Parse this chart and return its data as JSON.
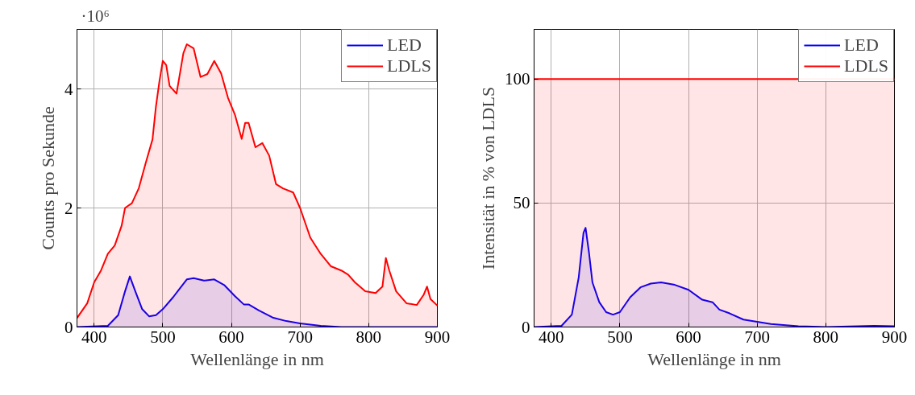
{
  "chart_data": [
    {
      "type": "area",
      "xlabel": "Wellenlänge in nm",
      "ylabel": "Counts pro Sekunde",
      "annotations": [
        "·10⁶"
      ],
      "xlim": [
        375,
        900
      ],
      "ylim": [
        0,
        5
      ],
      "xticks": [
        400,
        500,
        600,
        700,
        800,
        900
      ],
      "yticks": [
        0,
        2,
        4
      ],
      "grid": true,
      "legend": "top right",
      "series": [
        {
          "name": "LED",
          "color": "#0000ff",
          "x": [
            375,
            420,
            435,
            445,
            452,
            460,
            470,
            480,
            490,
            500,
            515,
            525,
            535,
            545,
            560,
            575,
            590,
            605,
            618,
            625,
            640,
            660,
            680,
            700,
            730,
            760,
            900
          ],
          "values": [
            0,
            0.02,
            0.2,
            0.6,
            0.85,
            0.6,
            0.3,
            0.18,
            0.2,
            0.3,
            0.5,
            0.65,
            0.8,
            0.82,
            0.78,
            0.8,
            0.7,
            0.52,
            0.38,
            0.38,
            0.28,
            0.16,
            0.1,
            0.06,
            0.02,
            0,
            0
          ]
        },
        {
          "name": "LDLS",
          "color": "#ff0000",
          "x": [
            375,
            390,
            400,
            410,
            420,
            430,
            440,
            445,
            455,
            465,
            475,
            485,
            490,
            495,
            500,
            505,
            510,
            520,
            530,
            535,
            545,
            555,
            565,
            575,
            585,
            595,
            605,
            615,
            620,
            625,
            635,
            645,
            655,
            665,
            675,
            690,
            700,
            715,
            730,
            745,
            760,
            770,
            780,
            795,
            810,
            820,
            825,
            830,
            840,
            855,
            870,
            880,
            885,
            890,
            900
          ],
          "values": [
            0.15,
            0.4,
            0.75,
            0.95,
            1.23,
            1.37,
            1.7,
            2.0,
            2.08,
            2.33,
            2.75,
            3.15,
            3.7,
            4.12,
            4.47,
            4.4,
            4.05,
            3.92,
            4.6,
            4.75,
            4.68,
            4.2,
            4.25,
            4.47,
            4.26,
            3.85,
            3.57,
            3.16,
            3.43,
            3.43,
            3.02,
            3.09,
            2.88,
            2.4,
            2.33,
            2.26,
            2.0,
            1.5,
            1.23,
            1.02,
            0.95,
            0.88,
            0.75,
            0.6,
            0.57,
            0.68,
            1.16,
            0.95,
            0.6,
            0.4,
            0.37,
            0.54,
            0.68,
            0.47,
            0.36
          ]
        }
      ]
    },
    {
      "type": "area",
      "xlabel": "Wellenlänge in nm",
      "ylabel": "Intensität in % von LDLS",
      "xlim": [
        375,
        900
      ],
      "ylim": [
        0,
        120
      ],
      "xticks": [
        400,
        500,
        600,
        700,
        800,
        900
      ],
      "yticks": [
        0,
        50,
        100
      ],
      "grid": true,
      "legend": "top right",
      "series": [
        {
          "name": "LED",
          "color": "#0000ff",
          "x": [
            375,
            415,
            430,
            440,
            447,
            450,
            455,
            460,
            470,
            480,
            490,
            500,
            515,
            530,
            545,
            560,
            580,
            600,
            620,
            635,
            645,
            660,
            680,
            720,
            760,
            800,
            870,
            900
          ],
          "values": [
            0,
            0.5,
            5,
            20,
            38,
            40,
            30,
            18,
            10,
            6,
            5,
            6,
            12,
            16,
            17.5,
            18,
            17,
            15,
            11,
            10,
            7,
            5.5,
            3,
            1.2,
            0.3,
            0,
            0.5,
            0.3
          ]
        },
        {
          "name": "LDLS",
          "color": "#ff0000",
          "x": [
            375,
            900
          ],
          "values": [
            100,
            100
          ]
        }
      ]
    }
  ]
}
